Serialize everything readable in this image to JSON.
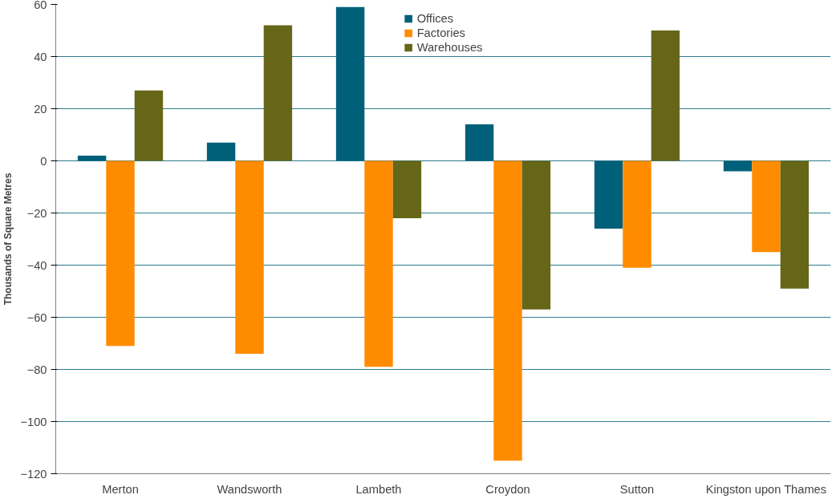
{
  "chart_data": {
    "type": "bar",
    "ylabel": "Thousands of Square Metres",
    "categories": [
      "Merton",
      "Wandsworth",
      "Lambeth",
      "Croydon",
      "Sutton",
      "Kingston upon Thames"
    ],
    "series": [
      {
        "name": "Offices",
        "color": "#00607a",
        "values": [
          2,
          7,
          59,
          14,
          -26,
          -4
        ]
      },
      {
        "name": "Factories",
        "color": "#ff8c00",
        "values": [
          -71,
          -74,
          -79,
          -115,
          -41,
          -35
        ]
      },
      {
        "name": "Warehouses",
        "color": "#666619",
        "values": [
          27,
          52,
          -22,
          -57,
          50,
          -49
        ]
      }
    ],
    "ylim": [
      -120,
      60
    ],
    "yticks": [
      -120,
      -100,
      -80,
      -60,
      -40,
      -20,
      0,
      20,
      40,
      60
    ],
    "grid": "y",
    "legend": "top"
  }
}
